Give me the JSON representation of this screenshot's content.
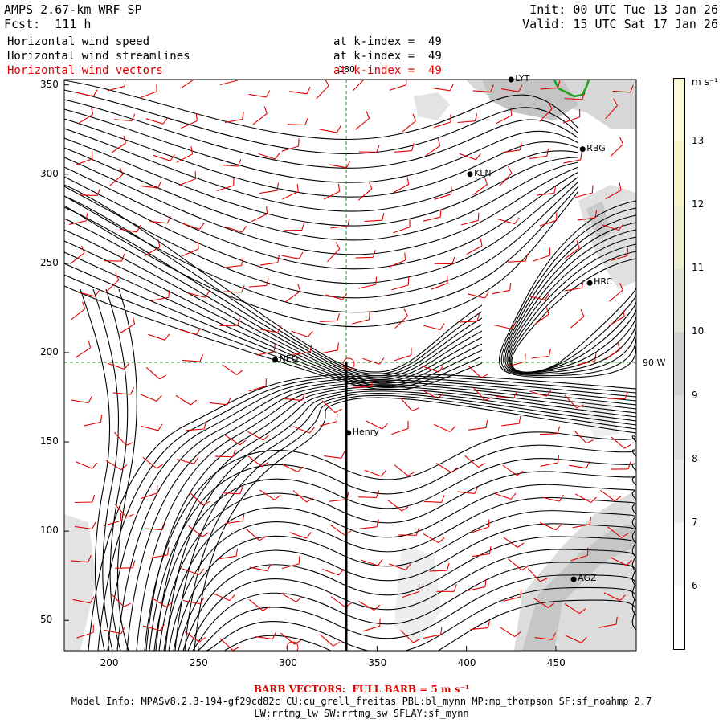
{
  "header": {
    "title": "AMPS 2.67-km WRF SP",
    "forecast": "Fcst:  111 h",
    "init": "Init: 00 UTC Tue 13 Jan 26",
    "valid": "Valid: 15 UTC Sat 17 Jan 26",
    "fields": [
      {
        "name": "Horizontal wind speed",
        "level": "at k-index =  49",
        "color": "#000000"
      },
      {
        "name": "Horizontal wind streamlines",
        "level": "at k-index =  49",
        "color": "#000000"
      },
      {
        "name": "Horizontal wind vectors",
        "level": "at k-index =  49",
        "color": "#e00000"
      }
    ]
  },
  "map": {
    "x_ticks": [
      200,
      250,
      300,
      350,
      400,
      450
    ],
    "y_ticks": [
      50,
      100,
      150,
      200,
      250,
      300,
      350
    ],
    "xlim": [
      175,
      495
    ],
    "ylim": [
      33,
      353
    ],
    "meridian_label": "180",
    "parallel_label": "90 W",
    "stations": [
      {
        "name": "LYT",
        "x": 425,
        "y": 353
      },
      {
        "name": "RBG",
        "x": 465,
        "y": 314
      },
      {
        "name": "KLN",
        "x": 402,
        "y": 300
      },
      {
        "name": "HRC",
        "x": 469,
        "y": 239
      },
      {
        "name": "NEO",
        "x": 293,
        "y": 196
      },
      {
        "name": "Henry",
        "x": 334,
        "y": 155
      },
      {
        "name": "AGZ",
        "x": 460,
        "y": 73
      }
    ],
    "colors": {
      "streamline": "#000000",
      "barb": "#e00000",
      "grid": "#2a8a2a",
      "coast": "#1aa31a",
      "transect": "#000000"
    }
  },
  "colorbar": {
    "unit": "m s⁻¹",
    "levels": [
      6,
      7,
      8,
      9,
      10,
      11,
      12,
      13
    ],
    "colors": [
      "#ffffff",
      "#f6f6f6",
      "#e9e9e9",
      "#dcdcdc",
      "#d0d0d0",
      "#e2e2d4",
      "#eeeecf",
      "#f7f5c8",
      "#fcfad6"
    ]
  },
  "footer": {
    "barb_note": "BARB VECTORS:  FULL BARB = 5 m s⁻¹",
    "model_info_1": "Model Info: MPASv8.2.3-194-gf29cd82c CU:cu_grell_freitas PBL:bl_mynn MP:mp_thompson SF:sf_noahmp 2.7",
    "model_info_2": "LW:rrtmg_lw SW:rrtmg_sw SFLAY:sf_mynn"
  }
}
